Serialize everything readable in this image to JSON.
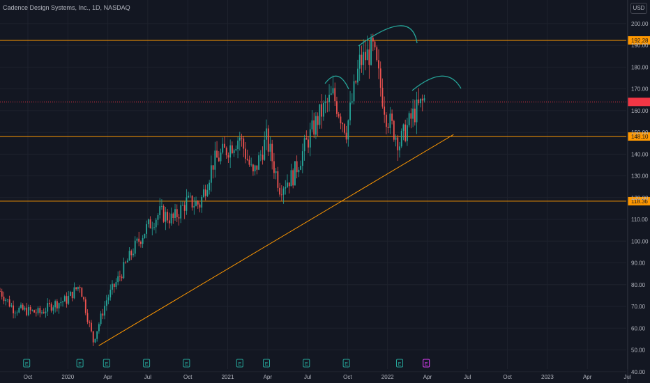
{
  "header": {
    "title": "Cadence Design Systems, Inc., 1D, NASDAQ",
    "currency": "USD"
  },
  "chart_data": {
    "type": "candlestick",
    "title": "Cadence Design Systems, Inc., 1D, NASDAQ",
    "y_ticks": [
      40,
      50,
      60,
      70,
      80,
      90,
      100,
      110,
      120,
      130,
      140,
      150,
      160,
      170,
      180,
      190,
      200
    ],
    "ylim": [
      38,
      207
    ],
    "x_labels": [
      "Oct",
      "2020",
      "Apr",
      "Jul",
      "Oct",
      "2021",
      "Apr",
      "Jul",
      "Oct",
      "2022",
      "Apr",
      "Jul",
      "Oct",
      "2023",
      "Apr",
      "Jul"
    ],
    "horizontal_levels": [
      {
        "value": 192.28,
        "label": "192.28",
        "color": "#ff9800"
      },
      {
        "value": 148.1,
        "label": "148.10",
        "color": "#ff9800"
      },
      {
        "value": 118.36,
        "label": "118.36",
        "color": "#ff9800"
      }
    ],
    "current_price": {
      "value": 164,
      "color": "#f23645"
    },
    "price_path": [
      {
        "x": "2019-08",
        "y": 77
      },
      {
        "x": "2019-09",
        "y": 69
      },
      {
        "x": "2019-10",
        "y": 68
      },
      {
        "x": "2019-11",
        "y": 67
      },
      {
        "x": "2019-12",
        "y": 71
      },
      {
        "x": "2020-01",
        "y": 73
      },
      {
        "x": "2020-02",
        "y": 80
      },
      {
        "x": "2020-03",
        "y": 54
      },
      {
        "x": "2020-04",
        "y": 73
      },
      {
        "x": "2020-05",
        "y": 84
      },
      {
        "x": "2020-06",
        "y": 96
      },
      {
        "x": "2020-07",
        "y": 106
      },
      {
        "x": "2020-08",
        "y": 113
      },
      {
        "x": "2020-09",
        "y": 110
      },
      {
        "x": "2020-10",
        "y": 118
      },
      {
        "x": "2020-11",
        "y": 117
      },
      {
        "x": "2020-12",
        "y": 136
      },
      {
        "x": "2021-01",
        "y": 142
      },
      {
        "x": "2021-02",
        "y": 148
      },
      {
        "x": "2021-03",
        "y": 130
      },
      {
        "x": "2021-04",
        "y": 147
      },
      {
        "x": "2021-05",
        "y": 125
      },
      {
        "x": "2021-06",
        "y": 130
      },
      {
        "x": "2021-07",
        "y": 145
      },
      {
        "x": "2021-08",
        "y": 158
      },
      {
        "x": "2021-09",
        "y": 167
      },
      {
        "x": "2021-10",
        "y": 151
      },
      {
        "x": "2021-11",
        "y": 182
      },
      {
        "x": "2021-12",
        "y": 188
      },
      {
        "x": "2022-01",
        "y": 158
      },
      {
        "x": "2022-02",
        "y": 145
      },
      {
        "x": "2022-03",
        "y": 158
      },
      {
        "x": "2022-04",
        "y": 166
      }
    ],
    "trendline": {
      "from": {
        "x": "2020-03",
        "y": 52
      },
      "to": {
        "x": "2022-05",
        "y": 149
      },
      "color": "#ff9800"
    },
    "earnings_markers": [
      {
        "x": "2019-10",
        "label": "E"
      },
      {
        "x": "2020-02",
        "label": "E"
      },
      {
        "x": "2020-04",
        "label": "E"
      },
      {
        "x": "2020-07",
        "label": "E"
      },
      {
        "x": "2020-10",
        "label": "E"
      },
      {
        "x": "2021-02",
        "label": "E"
      },
      {
        "x": "2021-04",
        "label": "E"
      },
      {
        "x": "2021-07",
        "label": "E"
      },
      {
        "x": "2021-10",
        "label": "E"
      },
      {
        "x": "2022-02",
        "label": "E"
      },
      {
        "x": "2022-04",
        "label": "E",
        "upcoming": true
      }
    ],
    "pattern_arcs": [
      {
        "name": "left-shoulder",
        "color": "#26a69a"
      },
      {
        "name": "head",
        "color": "#26a69a"
      },
      {
        "name": "right-shoulder",
        "color": "#26a69a"
      }
    ],
    "colors": {
      "background": "#131722",
      "up": "#26a69a",
      "down": "#ef5350",
      "grid": "#1e222d",
      "text": "#b2b5be"
    }
  }
}
